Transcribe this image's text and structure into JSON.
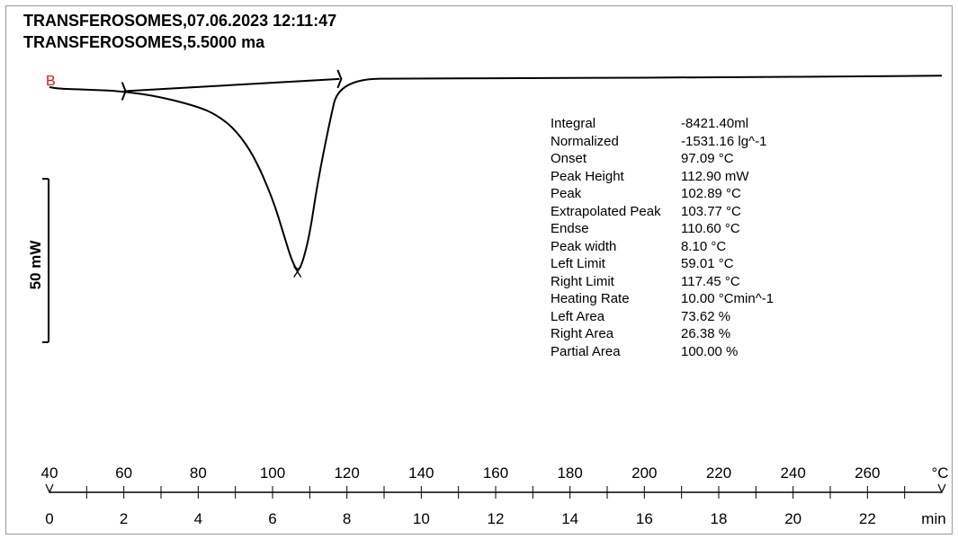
{
  "header": {
    "line1": "TRANSFEROSOMES,07.06.2023 12:11:47",
    "line2": "TRANSFEROSOMES,5.5000 ma"
  },
  "scale_bar": {
    "label": "50 mW"
  },
  "segment_marker": "B",
  "results": [
    {
      "label": "Integral",
      "value": "-8421.40ml"
    },
    {
      "label": "Normalized",
      "value": "-1531.16 lg^-1"
    },
    {
      "label": "Onset",
      "value": "97.09 °C"
    },
    {
      "label": "Peak Height",
      "value": "112.90 mW"
    },
    {
      "label": "Peak",
      "value": "102.89 °C"
    },
    {
      "label": "Extrapolated Peak",
      "value": "103.77 °C"
    },
    {
      "label": "Endse",
      "value": "110.60 °C"
    },
    {
      "label": "Peak width",
      "value": "8.10 °C"
    },
    {
      "label": "Left Limit",
      "value": "59.01 °C"
    },
    {
      "label": "Right Limit",
      "value": "117.45 °C"
    },
    {
      "label": "Heating Rate",
      "value": "10.00 °Cmin^-1"
    },
    {
      "label": "Left Area",
      "value": "73.62 %"
    },
    {
      "label": "Right Area",
      "value": "26.38 %"
    },
    {
      "label": "Partial Area",
      "value": "100.00 %"
    }
  ],
  "chart_data": {
    "type": "line",
    "xlabel": "°C",
    "x2label": "min",
    "temp_ticks": [
      "40",
      "60",
      "80",
      "100",
      "120",
      "140",
      "160",
      "180",
      "200",
      "220",
      "240",
      "260"
    ],
    "time_ticks": [
      "0",
      "2",
      "4",
      "6",
      "8",
      "10",
      "12",
      "14",
      "16",
      "18",
      "20",
      "22"
    ],
    "xlim_min": [
      0,
      24
    ],
    "series": [
      {
        "x_min": [
          0,
          0.25,
          1,
          2,
          3,
          4,
          4.5,
          5,
          5.5,
          6,
          6.3,
          6.5,
          6.67,
          6.8,
          7.0,
          7.2,
          7.5,
          7.8,
          10,
          14,
          18,
          22,
          24
        ],
        "y_mW": [
          0,
          -1,
          -1.5,
          -2.5,
          -6,
          -12,
          -17,
          -26,
          -42,
          -68,
          -90,
          -105,
          -112.9,
          -108,
          -90,
          -60,
          -25,
          5,
          5.3,
          5.6,
          6,
          6.6,
          7
        ]
      }
    ],
    "baseline": {
      "from": {
        "x_min": 2,
        "y_mW": -2.5
      },
      "to": {
        "x_min": 7.8,
        "y_mW": 5
      }
    },
    "peak": {
      "x_min": 6.67,
      "y_mW": -112.9
    }
  }
}
